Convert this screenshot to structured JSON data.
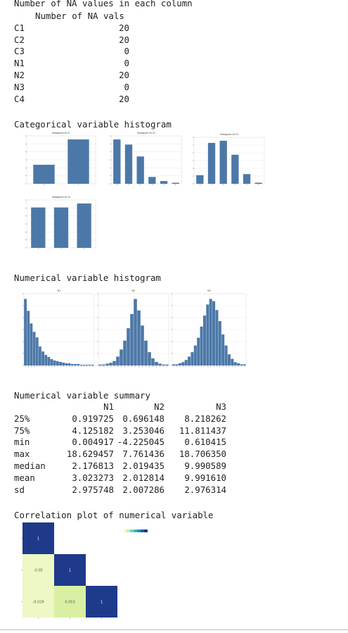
{
  "na_section": {
    "title": "Number of NA values in each column",
    "header": "Number of NA vals",
    "rows": [
      {
        "name": "C1",
        "value": "20"
      },
      {
        "name": "C2",
        "value": "20"
      },
      {
        "name": "C3",
        "value": "0"
      },
      {
        "name": "N1",
        "value": "0"
      },
      {
        "name": "N2",
        "value": "20"
      },
      {
        "name": "N3",
        "value": "0"
      },
      {
        "name": "C4",
        "value": "20"
      }
    ]
  },
  "categorical_section": {
    "title": "Categorical variable histogram"
  },
  "numerical_section": {
    "title": "Numerical variable histogram"
  },
  "summary_section": {
    "title": "Numerical variable summary",
    "columns": [
      "N1",
      "N2",
      "N3"
    ],
    "rows": [
      {
        "stat": "25%",
        "values": [
          "0.919725",
          "0.696148",
          "8.218262"
        ]
      },
      {
        "stat": "75%",
        "values": [
          "4.125182",
          "3.253046",
          "11.811437"
        ]
      },
      {
        "stat": "min",
        "values": [
          "0.004917",
          "-4.225045",
          "0.610415"
        ]
      },
      {
        "stat": "max",
        "values": [
          "18.629457",
          "7.761436",
          "18.706350"
        ]
      },
      {
        "stat": "median",
        "values": [
          "2.176813",
          "2.019435",
          "9.990589"
        ]
      },
      {
        "stat": "mean",
        "values": [
          "3.023273",
          "2.012814",
          "9.991610"
        ]
      },
      {
        "stat": "sd",
        "values": [
          "2.975748",
          "2.007286",
          "2.976314"
        ]
      }
    ]
  },
  "correlation_section": {
    "title": "Correlation plot of numerical variable"
  },
  "colors": {
    "bar": "#4c78a8",
    "corr_high": "#1f3a8a",
    "corr_low": "#edf8c4",
    "corr_low2": "#d9f0a3"
  },
  "chart_data": [
    {
      "type": "bar",
      "title": "Histogram of C1",
      "categories": [
        "a",
        "b"
      ],
      "values": [
        120,
        280
      ]
    },
    {
      "type": "bar",
      "title": "Histogram of C2",
      "categories": [
        "a",
        "b",
        "c",
        "d",
        "e",
        "f"
      ],
      "values": [
        130,
        115,
        80,
        20,
        8,
        3
      ]
    },
    {
      "type": "bar",
      "title": "Histogram of C3",
      "categories": [
        "a",
        "b",
        "c",
        "d",
        "e",
        "f"
      ],
      "values": [
        40,
        190,
        200,
        135,
        45,
        5
      ]
    },
    {
      "type": "bar",
      "title": "Histogram of C4",
      "categories": [
        "a",
        "b",
        "c"
      ],
      "values": [
        205,
        205,
        225
      ]
    },
    {
      "type": "bar",
      "title": "N1",
      "values": [
        95,
        78,
        60,
        48,
        40,
        27,
        20,
        15,
        12,
        9,
        7,
        6,
        5,
        4,
        3,
        3,
        2,
        2,
        2,
        1,
        1,
        1,
        1,
        1
      ]
    },
    {
      "type": "bar",
      "title": "N2",
      "values": [
        1,
        1,
        2,
        3,
        5,
        10,
        18,
        28,
        42,
        58,
        75,
        62,
        45,
        28,
        15,
        8,
        4,
        2,
        1,
        1
      ]
    },
    {
      "type": "bar",
      "title": "N3",
      "values": [
        1,
        1,
        2,
        3,
        5,
        8,
        12,
        18,
        25,
        35,
        45,
        55,
        60,
        58,
        50,
        40,
        28,
        18,
        10,
        6,
        3,
        2,
        1,
        1
      ]
    },
    {
      "type": "heatmap",
      "labels": [
        "N1",
        "N2",
        "N3"
      ],
      "cells": [
        {
          "row": "N1",
          "col": "N1",
          "value": "1"
        },
        {
          "row": "N2",
          "col": "N1",
          "value": "-0.05"
        },
        {
          "row": "N2",
          "col": "N2",
          "value": "1"
        },
        {
          "row": "N3",
          "col": "N1",
          "value": "-0.029"
        },
        {
          "row": "N3",
          "col": "N2",
          "value": "0.053"
        },
        {
          "row": "N3",
          "col": "N3",
          "value": "1"
        }
      ]
    }
  ]
}
